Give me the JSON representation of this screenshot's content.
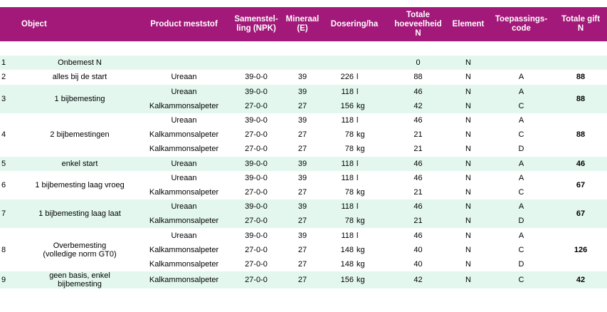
{
  "headers": {
    "object": "Object",
    "product": "Product meststof",
    "npk": "Samenstel-\nling (NPK)",
    "mineral": "Mineraal\n(E)",
    "dose": "Dosering/ha",
    "total_n": "Totale\nhoeveelheid\nN",
    "element": "Element",
    "code": "Toepassings-\ncode",
    "total_gift": "Totale gift\nN"
  },
  "groups": [
    {
      "nr": "1",
      "description": "Onbemest N",
      "total_gift": "",
      "rows": [
        {
          "product": "",
          "npk": "",
          "mineral": "",
          "dose": "",
          "unit": "",
          "total_n": "0",
          "element": "N",
          "code": ""
        }
      ]
    },
    {
      "nr": "2",
      "description": "alles bij de start",
      "total_gift": "88",
      "rows": [
        {
          "product": "Ureaan",
          "npk": "39-0-0",
          "mineral": "39",
          "dose": "226",
          "unit": "l",
          "total_n": "88",
          "element": "N",
          "code": "A"
        }
      ]
    },
    {
      "nr": "3",
      "description": "1 bijbemesting",
      "total_gift": "88",
      "rows": [
        {
          "product": "Ureaan",
          "npk": "39-0-0",
          "mineral": "39",
          "dose": "118",
          "unit": "l",
          "total_n": "46",
          "element": "N",
          "code": "A"
        },
        {
          "product": "Kalkammonsalpeter",
          "npk": "27-0-0",
          "mineral": "27",
          "dose": "156",
          "unit": "kg",
          "total_n": "42",
          "element": "N",
          "code": "C"
        }
      ]
    },
    {
      "nr": "4",
      "description": "2 bijbemestingen",
      "total_gift": "88",
      "rows": [
        {
          "product": "Ureaan",
          "npk": "39-0-0",
          "mineral": "39",
          "dose": "118",
          "unit": "l",
          "total_n": "46",
          "element": "N",
          "code": "A"
        },
        {
          "product": "Kalkammonsalpeter",
          "npk": "27-0-0",
          "mineral": "27",
          "dose": "78",
          "unit": "kg",
          "total_n": "21",
          "element": "N",
          "code": "C"
        },
        {
          "product": "Kalkammonsalpeter",
          "npk": "27-0-0",
          "mineral": "27",
          "dose": "78",
          "unit": "kg",
          "total_n": "21",
          "element": "N",
          "code": "D"
        }
      ]
    },
    {
      "nr": "5",
      "description": "enkel start",
      "total_gift": "46",
      "rows": [
        {
          "product": "Ureaan",
          "npk": "39-0-0",
          "mineral": "39",
          "dose": "118",
          "unit": "l",
          "total_n": "46",
          "element": "N",
          "code": "A"
        }
      ]
    },
    {
      "nr": "6",
      "description": "1 bijbemesting laag vroeg",
      "total_gift": "67",
      "rows": [
        {
          "product": "Ureaan",
          "npk": "39-0-0",
          "mineral": "39",
          "dose": "118",
          "unit": "l",
          "total_n": "46",
          "element": "N",
          "code": "A"
        },
        {
          "product": "Kalkammonsalpeter",
          "npk": "27-0-0",
          "mineral": "27",
          "dose": "78",
          "unit": "kg",
          "total_n": "21",
          "element": "N",
          "code": "C"
        }
      ]
    },
    {
      "nr": "7",
      "description": "1 bijbemesting laag laat",
      "total_gift": "67",
      "rows": [
        {
          "product": "Ureaan",
          "npk": "39-0-0",
          "mineral": "39",
          "dose": "118",
          "unit": "l",
          "total_n": "46",
          "element": "N",
          "code": "A"
        },
        {
          "product": "Kalkammonsalpeter",
          "npk": "27-0-0",
          "mineral": "27",
          "dose": "78",
          "unit": "kg",
          "total_n": "21",
          "element": "N",
          "code": "D"
        }
      ]
    },
    {
      "nr": "8",
      "description": "Overbemesting\n(volledige norm GT0)",
      "total_gift": "126",
      "rows": [
        {
          "product": "Ureaan",
          "npk": "39-0-0",
          "mineral": "39",
          "dose": "118",
          "unit": "l",
          "total_n": "46",
          "element": "N",
          "code": "A"
        },
        {
          "product": "Kalkammonsalpeter",
          "npk": "27-0-0",
          "mineral": "27",
          "dose": "148",
          "unit": "kg",
          "total_n": "40",
          "element": "N",
          "code": "C"
        },
        {
          "product": "Kalkammonsalpeter",
          "npk": "27-0-0",
          "mineral": "27",
          "dose": "148",
          "unit": "kg",
          "total_n": "40",
          "element": "N",
          "code": "D"
        }
      ]
    },
    {
      "nr": "9",
      "description": "geen basis, enkel\nbijbemesting",
      "total_gift": "42",
      "rows": [
        {
          "product": "Kalkammonsalpeter",
          "npk": "27-0-0",
          "mineral": "27",
          "dose": "156",
          "unit": "kg",
          "total_n": "42",
          "element": "N",
          "code": "C"
        }
      ]
    }
  ]
}
